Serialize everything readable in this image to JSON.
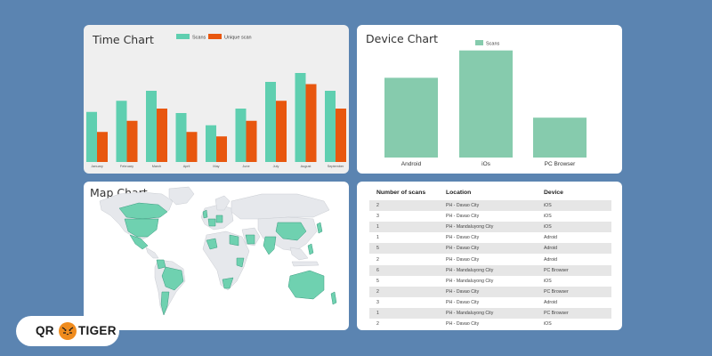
{
  "colors": {
    "page_bg": "#5b84b1",
    "scans": "#5fcfb0",
    "unique": "#e8570f",
    "device_bar": "#86cbad",
    "map_highlight": "#6fd1b0",
    "map_land": "#e6e8ec"
  },
  "time_chart": {
    "title": "Time Chart",
    "chart_data": {
      "type": "bar",
      "title": "Time Chart",
      "categories": [
        "January",
        "February",
        "March",
        "April",
        "May",
        "June",
        "July",
        "August",
        "September"
      ],
      "ylim": [
        0,
        100
      ],
      "series": [
        {
          "name": "Scans",
          "values": [
            45,
            55,
            64,
            44,
            33,
            48,
            72,
            80,
            64
          ]
        },
        {
          "name": "Unique scan",
          "values": [
            27,
            37,
            48,
            27,
            23,
            37,
            55,
            70,
            48
          ]
        }
      ]
    }
  },
  "device_chart": {
    "title": "Device Chart",
    "chart_data": {
      "type": "bar",
      "title": "Device Chart",
      "categories": [
        "Android",
        "iOs",
        "PC Browser"
      ],
      "ylim": [
        0,
        100
      ],
      "series": [
        {
          "name": "Scans",
          "values": [
            70,
            94,
            35
          ]
        }
      ]
    }
  },
  "map_chart": {
    "title": "Map Chart"
  },
  "scans_table": {
    "headers": [
      "Number of scans",
      "Location",
      "Device"
    ],
    "rows": [
      [
        "2",
        "PH - Davao City",
        "iOS"
      ],
      [
        "3",
        "PH - Davao City",
        "iOS"
      ],
      [
        "1",
        "PH - Mandaluyong City",
        "iOS"
      ],
      [
        "1",
        "PH - Davao City",
        "Adroid"
      ],
      [
        "5",
        "PH - Davao City",
        "Adroid"
      ],
      [
        "2",
        "PH - Davao City",
        "Adroid"
      ],
      [
        "6",
        "PH - Mandaluyong City",
        "PC Browser"
      ],
      [
        "5",
        "PH - Mandaluyong City",
        "iOS"
      ],
      [
        "2",
        "PH - Davao City",
        "PC Browser"
      ],
      [
        "3",
        "PH - Davao City",
        "Adroid"
      ],
      [
        "1",
        "PH - Mandaluyong City",
        "PC Browser"
      ],
      [
        "2",
        "PH - Davao City",
        "iOS"
      ]
    ]
  },
  "brand": {
    "left": "QR",
    "right": "TIGER",
    "icon": "tiger-icon"
  }
}
